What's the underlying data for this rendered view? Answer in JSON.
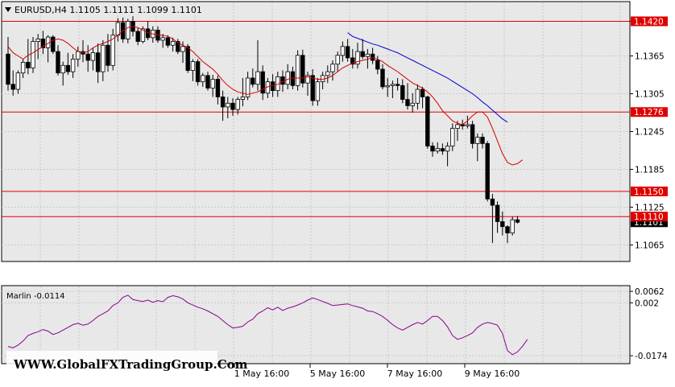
{
  "header": {
    "symbol_info": "EURUSD,H4  1.1105 1.1111 1.1099 1.1101"
  },
  "indicator": {
    "label": "Marlin -0.0114"
  },
  "watermark": "WWW.GlobalFXTradingGroup.Com",
  "colors": {
    "chart_bg": "#e8e8e8",
    "outer_bg": "#ffffff",
    "grid": "#c8c8c8",
    "level_line": "#e00000",
    "fast_ma": "#d40000",
    "slow_ma": "#0000cc",
    "oscillator": "#8b008b",
    "candle_bull": "#ffffff",
    "candle_bear": "#000000"
  },
  "chart_data": [
    {
      "type": "candlestick",
      "title": "EURUSD,H4",
      "ylim": [
        1.104,
        1.145
      ],
      "y_ticks": [
        "1.1420",
        "1.1365",
        "1.1305",
        "1.1245",
        "1.1185",
        "1.1125",
        "1.1101",
        "1.1065"
      ],
      "x_ticks": [
        "1 May 16:00",
        "5 May 16:00",
        "7 May 16:00",
        "9 May 16:00"
      ],
      "horizontal_levels": [
        {
          "value": 1.142,
          "label": "1.1420"
        },
        {
          "value": 1.1276,
          "label": "1.1276"
        },
        {
          "value": 1.115,
          "label": "1.1150"
        },
        {
          "value": 1.111,
          "label": "1.1110"
        }
      ],
      "current_price": {
        "value": 1.1101,
        "label": "1.1101"
      },
      "series": [
        {
          "kind": "ohlc",
          "values": [
            [
              1.1368,
              1.1395,
              1.131,
              1.132
            ],
            [
              1.132,
              1.1342,
              1.1302,
              1.1312
            ],
            [
              1.1312,
              1.1342,
              1.1305,
              1.1338
            ],
            [
              1.1338,
              1.136,
              1.133,
              1.1355
            ],
            [
              1.1355,
              1.1392,
              1.1336,
              1.1346
            ],
            [
              1.1346,
              1.1395,
              1.1338,
              1.1388
            ],
            [
              1.1388,
              1.14,
              1.136,
              1.1392
            ],
            [
              1.1392,
              1.1405,
              1.1368,
              1.1378
            ],
            [
              1.1378,
              1.1398,
              1.1355,
              1.1395
            ],
            [
              1.1395,
              1.1398,
              1.1368,
              1.1372
            ],
            [
              1.1372,
              1.1382,
              1.1334,
              1.1338
            ],
            [
              1.1338,
              1.1356,
              1.1318,
              1.135
            ],
            [
              1.135,
              1.137,
              1.1335,
              1.134
            ],
            [
              1.134,
              1.1368,
              1.133,
              1.136
            ],
            [
              1.136,
              1.138,
              1.1348,
              1.1372
            ],
            [
              1.1372,
              1.139,
              1.1355,
              1.1368
            ],
            [
              1.1368,
              1.1382,
              1.134,
              1.1358
            ],
            [
              1.1358,
              1.1378,
              1.1342,
              1.137
            ],
            [
              1.137,
              1.1385,
              1.1322,
              1.134
            ],
            [
              1.134,
              1.139,
              1.1325,
              1.1382
            ],
            [
              1.1382,
              1.14,
              1.134,
              1.135
            ],
            [
              1.135,
              1.1408,
              1.1342,
              1.1398
            ],
            [
              1.1398,
              1.1425,
              1.1388,
              1.1418
            ],
            [
              1.1418,
              1.1426,
              1.1386,
              1.1392
            ],
            [
              1.1392,
              1.1424,
              1.1385,
              1.142
            ],
            [
              1.142,
              1.1428,
              1.1396,
              1.1404
            ],
            [
              1.1404,
              1.141,
              1.1382,
              1.1388
            ],
            [
              1.1388,
              1.1412,
              1.1385,
              1.1408
            ],
            [
              1.1408,
              1.142,
              1.139,
              1.1394
            ],
            [
              1.1394,
              1.1412,
              1.1386,
              1.1406
            ],
            [
              1.1406,
              1.1412,
              1.1386,
              1.139
            ],
            [
              1.139,
              1.14,
              1.1378,
              1.1394
            ],
            [
              1.1394,
              1.1398,
              1.1378,
              1.1382
            ],
            [
              1.1382,
              1.1394,
              1.1372,
              1.1388
            ],
            [
              1.1388,
              1.1392,
              1.1368,
              1.1372
            ],
            [
              1.1372,
              1.1388,
              1.1354,
              1.138
            ],
            [
              1.138,
              1.1384,
              1.1338,
              1.1342
            ],
            [
              1.1342,
              1.136,
              1.1325,
              1.1356
            ],
            [
              1.1356,
              1.136,
              1.1318,
              1.1324
            ],
            [
              1.1324,
              1.1338,
              1.1316,
              1.1334
            ],
            [
              1.1334,
              1.134,
              1.131,
              1.1314
            ],
            [
              1.1314,
              1.1335,
              1.13,
              1.1328
            ],
            [
              1.1328,
              1.1334,
              1.1288,
              1.13
            ],
            [
              1.13,
              1.131,
              1.1262,
              1.1284
            ],
            [
              1.1284,
              1.13,
              1.1266,
              1.129
            ],
            [
              1.129,
              1.1298,
              1.127,
              1.128
            ],
            [
              1.128,
              1.13,
              1.1272,
              1.1296
            ],
            [
              1.1296,
              1.133,
              1.1285,
              1.13
            ],
            [
              1.13,
              1.134,
              1.1295,
              1.133
            ],
            [
              1.133,
              1.1345,
              1.1315,
              1.132
            ],
            [
              1.132,
              1.139,
              1.131,
              1.134
            ],
            [
              1.134,
              1.135,
              1.1295,
              1.1306
            ],
            [
              1.1306,
              1.133,
              1.1298,
              1.1324
            ],
            [
              1.1324,
              1.1336,
              1.13,
              1.131
            ],
            [
              1.131,
              1.134,
              1.13,
              1.1332
            ],
            [
              1.1332,
              1.1342,
              1.1308,
              1.132
            ],
            [
              1.132,
              1.1352,
              1.1312,
              1.134
            ],
            [
              1.134,
              1.1348,
              1.1312,
              1.1318
            ],
            [
              1.1318,
              1.1374,
              1.131,
              1.1366
            ],
            [
              1.1366,
              1.1375,
              1.1315,
              1.1322
            ],
            [
              1.1322,
              1.134,
              1.1302,
              1.1334
            ],
            [
              1.1334,
              1.1344,
              1.1286,
              1.1294
            ],
            [
              1.1294,
              1.133,
              1.1286,
              1.1324
            ],
            [
              1.1324,
              1.134,
              1.1312,
              1.1334
            ],
            [
              1.1334,
              1.135,
              1.1322,
              1.134
            ],
            [
              1.134,
              1.1358,
              1.1326,
              1.1352
            ],
            [
              1.1352,
              1.1372,
              1.134,
              1.1366
            ],
            [
              1.1366,
              1.1388,
              1.1356,
              1.138
            ],
            [
              1.138,
              1.1392,
              1.1356,
              1.1362
            ],
            [
              1.1362,
              1.1376,
              1.1345,
              1.1352
            ],
            [
              1.1352,
              1.1386,
              1.1345,
              1.1372
            ],
            [
              1.1372,
              1.1392,
              1.136,
              1.1364
            ],
            [
              1.1364,
              1.1376,
              1.1345,
              1.1368
            ],
            [
              1.1368,
              1.1378,
              1.1352,
              1.1358
            ],
            [
              1.1358,
              1.1365,
              1.1336,
              1.1344
            ],
            [
              1.1344,
              1.1352,
              1.1312,
              1.1316
            ],
            [
              1.1316,
              1.133,
              1.13,
              1.1318
            ],
            [
              1.1318,
              1.1326,
              1.1298,
              1.132
            ],
            [
              1.132,
              1.133,
              1.131,
              1.1318
            ],
            [
              1.1318,
              1.1328,
              1.129,
              1.1296
            ],
            [
              1.1296,
              1.1322,
              1.128,
              1.1286
            ],
            [
              1.1286,
              1.1306,
              1.1275,
              1.129
            ],
            [
              1.129,
              1.132,
              1.128,
              1.1312
            ],
            [
              1.1312,
              1.1316,
              1.1282,
              1.13
            ],
            [
              1.13,
              1.1302,
              1.1218,
              1.1222
            ],
            [
              1.1222,
              1.1228,
              1.1205,
              1.1214
            ],
            [
              1.1214,
              1.1228,
              1.121,
              1.1218
            ],
            [
              1.1218,
              1.1226,
              1.1208,
              1.1214
            ],
            [
              1.1214,
              1.1228,
              1.119,
              1.1222
            ],
            [
              1.1222,
              1.1258,
              1.1214,
              1.125
            ],
            [
              1.125,
              1.1262,
              1.123,
              1.1256
            ],
            [
              1.1256,
              1.1264,
              1.1248,
              1.1254
            ],
            [
              1.1254,
              1.127,
              1.125,
              1.1256
            ],
            [
              1.1256,
              1.1262,
              1.1218,
              1.1226
            ],
            [
              1.1226,
              1.1242,
              1.1198,
              1.1236
            ],
            [
              1.1236,
              1.1242,
              1.1218,
              1.1226
            ],
            [
              1.1226,
              1.123,
              1.1134,
              1.1138
            ],
            [
              1.1138,
              1.1146,
              1.1068,
              1.1128
            ],
            [
              1.1128,
              1.1134,
              1.1084,
              1.1102
            ],
            [
              1.1102,
              1.1118,
              1.108,
              1.1094
            ],
            [
              1.1094,
              1.1096,
              1.1068,
              1.1084
            ],
            [
              1.1084,
              1.111,
              1.108,
              1.1105
            ],
            [
              1.1105,
              1.1111,
              1.1099,
              1.1101
            ]
          ]
        },
        {
          "name": "",
          "kind": "line",
          "color": "#d40000",
          "values": [
            1.138,
            1.137,
            1.1365,
            1.136,
            1.1366,
            1.137,
            1.1375,
            1.138,
            1.1385,
            1.139,
            1.1392,
            1.139,
            1.1385,
            1.1378,
            1.1372,
            1.137,
            1.1372,
            1.1378,
            1.1382,
            1.1385,
            1.1388,
            1.1392,
            1.1398,
            1.1405,
            1.141,
            1.1412,
            1.141,
            1.1406,
            1.1402,
            1.14,
            1.1398,
            1.1398,
            1.1396,
            1.1392,
            1.1386,
            1.1382,
            1.1378,
            1.1372,
            1.1364,
            1.1356,
            1.135,
            1.1344,
            1.1336,
            1.1326,
            1.1318,
            1.1312,
            1.1308,
            1.1306,
            1.1304,
            1.1306,
            1.1308,
            1.1312,
            1.1316,
            1.1318,
            1.132,
            1.1324,
            1.1328,
            1.133,
            1.133,
            1.133,
            1.1332,
            1.133,
            1.1328,
            1.1328,
            1.133,
            1.1334,
            1.134,
            1.1346,
            1.135,
            1.1354,
            1.1356,
            1.1358,
            1.136,
            1.1362,
            1.136,
            1.1356,
            1.135,
            1.1345,
            1.134,
            1.1334,
            1.1328,
            1.1322,
            1.1318,
            1.1314,
            1.1308,
            1.13,
            1.129,
            1.1278,
            1.127,
            1.1262,
            1.1258,
            1.1256,
            1.1262,
            1.127,
            1.1276,
            1.1276,
            1.1268,
            1.125,
            1.123,
            1.121,
            1.1196,
            1.1192,
            1.1194,
            1.12
          ]
        },
        {
          "name": "",
          "kind": "line",
          "color": "#0000cc",
          "values": [
            null,
            null,
            null,
            null,
            null,
            null,
            null,
            null,
            null,
            null,
            null,
            null,
            null,
            null,
            null,
            null,
            null,
            null,
            null,
            null,
            null,
            null,
            null,
            null,
            null,
            null,
            null,
            null,
            null,
            null,
            null,
            null,
            null,
            null,
            null,
            null,
            null,
            null,
            null,
            null,
            null,
            null,
            null,
            null,
            null,
            null,
            null,
            null,
            null,
            null,
            null,
            null,
            null,
            null,
            null,
            null,
            null,
            null,
            null,
            null,
            null,
            null,
            null,
            null,
            null,
            null,
            null,
            null,
            1.1402,
            1.1396,
            1.1393,
            1.139,
            1.1387,
            1.1384,
            1.1382,
            1.1379,
            1.1376,
            1.1373,
            1.137,
            1.1366,
            1.1362,
            1.1358,
            1.1354,
            1.135,
            1.1346,
            1.1342,
            1.1338,
            1.1334,
            1.133,
            1.1325,
            1.132,
            1.1315,
            1.131,
            1.1305,
            1.1299,
            1.1292,
            1.1286,
            1.1279,
            1.1272,
            1.1265,
            1.126,
            null,
            null,
            null,
            null
          ]
        }
      ]
    },
    {
      "type": "line",
      "title": "Marlin -0.0114",
      "ylim": [
        -0.02,
        0.008
      ],
      "y_ticks": [
        "0.0062",
        "0.002",
        "-0.0174"
      ],
      "series": [
        {
          "name": "Marlin",
          "color": "#8b008b",
          "values": [
            -0.014,
            -0.0145,
            -0.0135,
            -0.012,
            -0.01,
            -0.0092,
            -0.0086,
            -0.0078,
            -0.0084,
            -0.0096,
            -0.009,
            -0.008,
            -0.007,
            -0.006,
            -0.0055,
            -0.0062,
            -0.0058,
            -0.0045,
            -0.003,
            -0.002,
            -0.001,
            0.001,
            0.002,
            0.004,
            0.0048,
            0.0032,
            0.0028,
            0.0025,
            0.003,
            0.0022,
            0.0028,
            0.0024,
            0.004,
            0.0046,
            0.0042,
            0.0034,
            0.002,
            0.0012,
            0.0004,
            -0.0002,
            -0.001,
            -0.002,
            -0.003,
            -0.0045,
            -0.006,
            -0.0072,
            -0.007,
            -0.0066,
            -0.005,
            -0.004,
            -0.002,
            -0.001,
            0.0002,
            -0.0006,
            0.0004,
            -0.0008,
            0.0,
            0.0005,
            0.0012,
            0.002,
            0.003,
            0.0038,
            0.0032,
            0.0025,
            0.0018,
            0.001,
            0.0012,
            0.0014,
            0.0016,
            0.001,
            0.0005,
            0.0,
            -0.001,
            -0.0012,
            -0.002,
            -0.003,
            -0.0044,
            -0.006,
            -0.0072,
            -0.008,
            -0.007,
            -0.006,
            -0.0052,
            -0.0058,
            -0.0045,
            -0.003,
            -0.003,
            -0.0045,
            -0.0068,
            -0.01,
            -0.0114,
            -0.0108,
            -0.01,
            -0.009,
            -0.007,
            -0.0058,
            -0.0052,
            -0.0056,
            -0.0062,
            -0.0092,
            -0.0155,
            -0.017,
            -0.016,
            -0.014,
            -0.0114
          ]
        }
      ]
    }
  ]
}
